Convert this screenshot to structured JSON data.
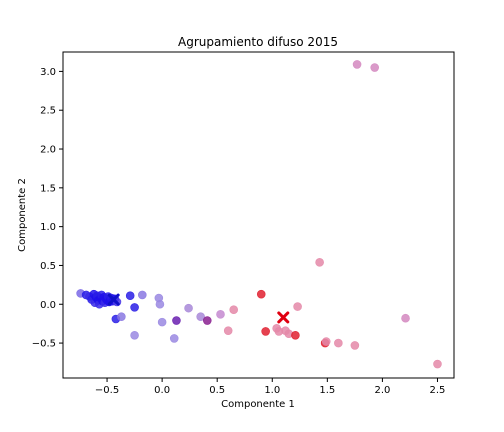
{
  "chart_data": {
    "type": "scatter",
    "title": "Agrupamiento difuso 2015",
    "xlabel": "Componente 1",
    "ylabel": "Componente 2",
    "xlim": [
      -0.9,
      2.65
    ],
    "ylim": [
      -0.95,
      3.25
    ],
    "xticks": [
      -0.5,
      0.0,
      0.5,
      1.0,
      1.5,
      2.0,
      2.5
    ],
    "xtick_labels": [
      "−0.5",
      "0.0",
      "0.5",
      "1.0",
      "1.5",
      "2.0",
      "2.5"
    ],
    "yticks": [
      -0.5,
      0.0,
      0.5,
      1.0,
      1.5,
      2.0,
      2.5,
      3.0
    ],
    "ytick_labels": [
      "−0.5",
      "0.0",
      "0.5",
      "1.0",
      "1.5",
      "2.0",
      "2.5",
      "3.0"
    ],
    "grid": false,
    "points": [
      {
        "x": -0.74,
        "y": 0.14,
        "color": "#7a68e6"
      },
      {
        "x": -0.69,
        "y": 0.12,
        "color": "#2a1ee6"
      },
      {
        "x": -0.66,
        "y": 0.1,
        "color": "#3a2ae8"
      },
      {
        "x": -0.64,
        "y": 0.06,
        "color": "#2a1ee6"
      },
      {
        "x": -0.62,
        "y": 0.13,
        "color": "#2010ea"
      },
      {
        "x": -0.61,
        "y": 0.02,
        "color": "#3a2ae8"
      },
      {
        "x": -0.6,
        "y": 0.09,
        "color": "#2010ea"
      },
      {
        "x": -0.59,
        "y": 0.11,
        "color": "#2a1ee6"
      },
      {
        "x": -0.58,
        "y": 0.05,
        "color": "#2010ea"
      },
      {
        "x": -0.57,
        "y": 0.0,
        "color": "#3a2ae8"
      },
      {
        "x": -0.56,
        "y": 0.08,
        "color": "#2010ea"
      },
      {
        "x": -0.55,
        "y": 0.12,
        "color": "#2a1ee6"
      },
      {
        "x": -0.54,
        "y": 0.04,
        "color": "#2010ea"
      },
      {
        "x": -0.53,
        "y": 0.09,
        "color": "#2010ea"
      },
      {
        "x": -0.52,
        "y": 0.02,
        "color": "#3a2ae8"
      },
      {
        "x": -0.51,
        "y": 0.07,
        "color": "#2010ea"
      },
      {
        "x": -0.5,
        "y": 0.05,
        "color": "#2010ea"
      },
      {
        "x": -0.49,
        "y": 0.1,
        "color": "#2a1ee6"
      },
      {
        "x": -0.48,
        "y": 0.03,
        "color": "#2010ea"
      },
      {
        "x": -0.47,
        "y": 0.06,
        "color": "#2010ea"
      },
      {
        "x": -0.46,
        "y": 0.08,
        "color": "#2a1ee6"
      },
      {
        "x": -0.45,
        "y": 0.04,
        "color": "#2010ea"
      },
      {
        "x": -0.43,
        "y": 0.07,
        "color": "#2010ea"
      },
      {
        "x": -0.41,
        "y": 0.03,
        "color": "#4a3ae6"
      },
      {
        "x": -0.42,
        "y": -0.19,
        "color": "#2a1ee6"
      },
      {
        "x": -0.37,
        "y": -0.16,
        "color": "#8a78e2"
      },
      {
        "x": -0.29,
        "y": 0.11,
        "color": "#2a1ee6"
      },
      {
        "x": -0.25,
        "y": -0.04,
        "color": "#2a1ee6"
      },
      {
        "x": -0.25,
        "y": -0.4,
        "color": "#9a88e2"
      },
      {
        "x": -0.18,
        "y": 0.12,
        "color": "#8a78e2"
      },
      {
        "x": -0.03,
        "y": 0.08,
        "color": "#9a88e2"
      },
      {
        "x": -0.02,
        "y": 0.0,
        "color": "#9a88e2"
      },
      {
        "x": 0.0,
        "y": -0.23,
        "color": "#9a88e2"
      },
      {
        "x": 0.11,
        "y": -0.44,
        "color": "#9a88e2"
      },
      {
        "x": 0.13,
        "y": -0.21,
        "color": "#6a20b0"
      },
      {
        "x": 0.24,
        "y": -0.05,
        "color": "#a888d8"
      },
      {
        "x": 0.35,
        "y": -0.16,
        "color": "#a888d8"
      },
      {
        "x": 0.41,
        "y": -0.21,
        "color": "#8a2090"
      },
      {
        "x": 0.53,
        "y": -0.13,
        "color": "#c48ad0"
      },
      {
        "x": 0.6,
        "y": -0.34,
        "color": "#e488a8"
      },
      {
        "x": 0.65,
        "y": -0.07,
        "color": "#e488a8"
      },
      {
        "x": 0.9,
        "y": 0.13,
        "color": "#e02030"
      },
      {
        "x": 0.94,
        "y": -0.35,
        "color": "#e02030"
      },
      {
        "x": 1.04,
        "y": -0.31,
        "color": "#e488a8"
      },
      {
        "x": 1.06,
        "y": -0.35,
        "color": "#e488a8"
      },
      {
        "x": 1.12,
        "y": -0.34,
        "color": "#e488a8"
      },
      {
        "x": 1.15,
        "y": -0.38,
        "color": "#e488a8"
      },
      {
        "x": 1.21,
        "y": -0.4,
        "color": "#e02030"
      },
      {
        "x": 1.23,
        "y": -0.03,
        "color": "#e488a8"
      },
      {
        "x": 1.43,
        "y": 0.54,
        "color": "#e488a8"
      },
      {
        "x": 1.48,
        "y": -0.5,
        "color": "#e02030"
      },
      {
        "x": 1.49,
        "y": -0.48,
        "color": "#e488a8"
      },
      {
        "x": 1.6,
        "y": -0.5,
        "color": "#e488a8"
      },
      {
        "x": 1.75,
        "y": -0.53,
        "color": "#e488a8"
      },
      {
        "x": 1.77,
        "y": 3.09,
        "color": "#d488c0"
      },
      {
        "x": 1.93,
        "y": 3.05,
        "color": "#d488c0"
      },
      {
        "x": 2.21,
        "y": -0.18,
        "color": "#d488c0"
      },
      {
        "x": 2.5,
        "y": -0.77,
        "color": "#e488a8"
      }
    ],
    "centroids": [
      {
        "x": -0.44,
        "y": 0.06,
        "color": "#1010c8",
        "marker": "x"
      },
      {
        "x": 1.1,
        "y": -0.17,
        "color": "#e00010",
        "marker": "x"
      }
    ]
  }
}
